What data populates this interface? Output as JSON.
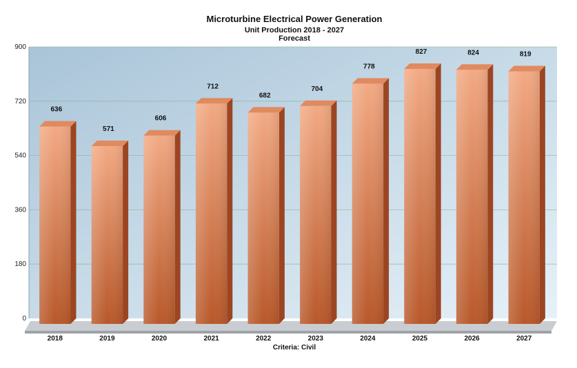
{
  "chart_data": {
    "type": "bar",
    "title": "Microturbine Electrical Power Generation",
    "subtitle": "Unit Production 2018 - 2027",
    "subtitle2": "Forecast",
    "xlabel": "Criteria: Civil",
    "ylabel": "",
    "categories": [
      "2018",
      "2019",
      "2020",
      "2021",
      "2022",
      "2023",
      "2024",
      "2025",
      "2026",
      "2027"
    ],
    "values": [
      636,
      571,
      606,
      712,
      682,
      704,
      778,
      827,
      824,
      819
    ],
    "yticks": [
      "0",
      "180",
      "360",
      "540",
      "720",
      "900"
    ],
    "ylim": [
      0,
      900
    ],
    "grid": true,
    "legend": "none",
    "colors": {
      "bar_top": "#f2aa84",
      "bar_bottom": "#b8582a",
      "bar_side": "#9c4522",
      "bar_cap": "#e08a60",
      "plot_bg_top": "#a9c4d8",
      "plot_bg_bottom": "#e6f1f8",
      "floor": "#c9ccd0"
    }
  }
}
